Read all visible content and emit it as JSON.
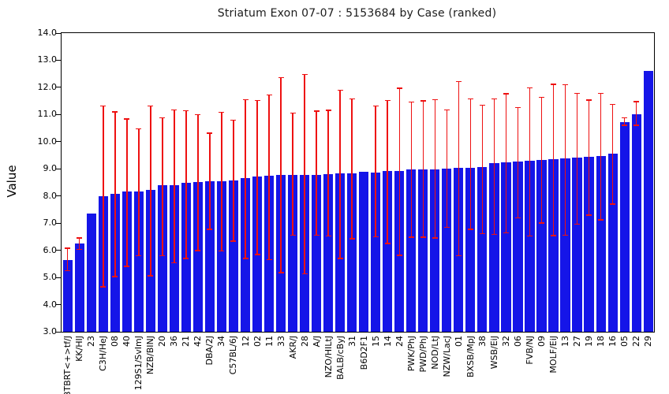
{
  "chart_data": {
    "type": "bar",
    "title": "Striatum Exon 07-07 : 5153684 by Case (ranked)",
    "xlabel": "",
    "ylabel": "Value",
    "ylim": [
      3.0,
      14.0
    ],
    "ytick_labels": [
      "3.0",
      "4.0",
      "5.0",
      "6.0",
      "7.0",
      "8.0",
      "9.0",
      "10.0",
      "11.0",
      "12.0",
      "13.0",
      "14.0"
    ],
    "grid": false,
    "legend": null,
    "bar_color": "#1515e8",
    "error_color": "#ee1111",
    "axis_color": "#000000",
    "categories": [
      "BTBRT<+>tf/J",
      "KK/HIJ",
      "23",
      "C3H/HeJ",
      "08",
      "40",
      "129S1/SvImJ",
      "NZB/BINJ",
      "20",
      "36",
      "21",
      "42",
      "DBA/2J",
      "34",
      "C57BL/6J",
      "12",
      "02",
      "11",
      "33",
      "AKR/J",
      "28",
      "A/J",
      "NZO/HILtJ",
      "BALB/cByJ",
      "31",
      "B6D2F1",
      "15",
      "14",
      "24",
      "PWK/PhJ",
      "PWD/PhJ",
      "NOD/LtJ",
      "NZW/LacJ",
      "01",
      "BXSB/MpJ",
      "38",
      "WSB/EiJ",
      "32",
      "06",
      "FVB/NJ",
      "09",
      "MOLF/EiJ",
      "13",
      "27",
      "19",
      "18",
      "16",
      "05",
      "22",
      "29"
    ],
    "values": [
      5.65,
      6.25,
      7.35,
      8.0,
      8.07,
      8.16,
      8.16,
      8.21,
      8.39,
      8.39,
      8.48,
      8.51,
      8.55,
      8.55,
      8.58,
      8.66,
      8.72,
      8.76,
      8.78,
      8.79,
      8.79,
      8.79,
      8.8,
      8.84,
      8.84,
      8.88,
      8.87,
      8.91,
      8.91,
      8.98,
      8.98,
      8.99,
      9.02,
      9.03,
      9.05,
      9.06,
      9.2,
      9.23,
      9.28,
      9.31,
      9.33,
      9.35,
      9.38,
      9.4,
      9.43,
      9.48,
      9.55,
      10.71,
      11.02,
      12.62
    ],
    "error_low": [
      5.25,
      6.03,
      null,
      4.65,
      5.03,
      5.41,
      5.8,
      5.06,
      5.8,
      5.54,
      5.7,
      5.99,
      6.77,
      5.97,
      6.34,
      5.7,
      5.85,
      5.66,
      5.18,
      6.56,
      5.13,
      6.56,
      6.53,
      5.7,
      6.42,
      null,
      6.5,
      6.25,
      5.82,
      6.49,
      6.49,
      6.45,
      6.85,
      5.8,
      6.78,
      6.61,
      6.59,
      6.64,
      7.2,
      6.53,
      7.0,
      6.54,
      6.56,
      6.96,
      7.29,
      7.12,
      7.7,
      10.6,
      10.61,
      null
    ],
    "error_high": [
      6.08,
      6.45,
      null,
      11.32,
      11.1,
      10.83,
      10.48,
      11.31,
      10.88,
      11.17,
      11.14,
      11.0,
      10.32,
      11.08,
      10.8,
      11.55,
      11.52,
      11.72,
      12.36,
      11.06,
      12.47,
      11.12,
      11.15,
      11.9,
      11.58,
      null,
      11.32,
      11.52,
      11.97,
      11.46,
      11.5,
      11.55,
      11.17,
      12.22,
      11.57,
      11.34,
      11.58,
      11.76,
      11.26,
      11.99,
      11.63,
      12.12,
      12.1,
      11.78,
      11.53,
      11.78,
      11.37,
      10.88,
      11.47,
      null
    ]
  }
}
